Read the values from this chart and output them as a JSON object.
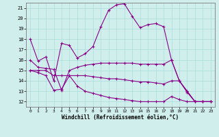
{
  "title": "",
  "xlabel": "Windchill (Refroidissement éolien,°C)",
  "ylabel": "",
  "xlim": [
    -0.5,
    23.5
  ],
  "ylim": [
    11.5,
    21.5
  ],
  "yticks": [
    12,
    13,
    14,
    15,
    16,
    17,
    18,
    19,
    20,
    21
  ],
  "xticks": [
    0,
    1,
    2,
    3,
    4,
    5,
    6,
    7,
    8,
    9,
    10,
    11,
    12,
    13,
    14,
    15,
    16,
    17,
    18,
    19,
    20,
    21,
    22,
    23
  ],
  "bg_color": "#d0eeeb",
  "grid_color": "#aaddda",
  "line_color": "#880088",
  "lines": [
    {
      "x": [
        0,
        1,
        2,
        3,
        4,
        5,
        6,
        7,
        8,
        9,
        10,
        11,
        12,
        13,
        14,
        15,
        16,
        17,
        18,
        19,
        20,
        21,
        22,
        23
      ],
      "y": [
        18.0,
        15.9,
        16.3,
        14.0,
        17.6,
        17.4,
        16.2,
        16.6,
        17.3,
        19.2,
        20.8,
        21.3,
        21.4,
        20.2,
        19.1,
        19.4,
        19.5,
        19.2,
        16.0,
        14.0,
        13.0,
        12.0,
        12.0,
        12.0
      ]
    },
    {
      "x": [
        0,
        1,
        2,
        3,
        4,
        5,
        6,
        7,
        8,
        9,
        10,
        11,
        12,
        13,
        14,
        15,
        16,
        17,
        18,
        19,
        20,
        21,
        22,
        23
      ],
      "y": [
        16.0,
        15.3,
        15.2,
        15.1,
        13.1,
        15.0,
        15.3,
        15.5,
        15.6,
        15.7,
        15.7,
        15.7,
        15.7,
        15.7,
        15.6,
        15.6,
        15.6,
        15.6,
        16.0,
        14.0,
        12.9,
        12.0,
        12.0,
        12.0
      ]
    },
    {
      "x": [
        0,
        1,
        2,
        3,
        4,
        5,
        6,
        7,
        8,
        9,
        10,
        11,
        12,
        13,
        14,
        15,
        16,
        17,
        18,
        19,
        20,
        21,
        22,
        23
      ],
      "y": [
        15.0,
        15.0,
        15.0,
        14.5,
        14.5,
        14.5,
        14.5,
        14.5,
        14.4,
        14.3,
        14.2,
        14.2,
        14.1,
        14.0,
        13.9,
        13.9,
        13.8,
        13.7,
        14.0,
        14.0,
        13.0,
        12.0,
        12.0,
        12.0
      ]
    },
    {
      "x": [
        0,
        1,
        2,
        3,
        4,
        5,
        6,
        7,
        8,
        9,
        10,
        11,
        12,
        13,
        14,
        15,
        16,
        17,
        18,
        19,
        20,
        21,
        22,
        23
      ],
      "y": [
        15.0,
        14.8,
        14.5,
        13.1,
        13.2,
        14.5,
        13.5,
        13.0,
        12.8,
        12.6,
        12.4,
        12.3,
        12.2,
        12.1,
        12.0,
        12.0,
        12.0,
        12.0,
        12.5,
        12.2,
        12.0,
        12.0,
        12.0,
        12.0
      ]
    }
  ]
}
